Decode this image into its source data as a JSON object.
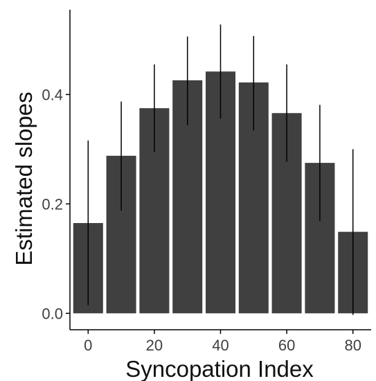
{
  "chart_data": {
    "type": "bar",
    "title": "",
    "xlabel": "Syncopation Index",
    "ylabel": "Estimated slopes",
    "x": [
      0,
      10,
      20,
      30,
      40,
      50,
      60,
      70,
      80
    ],
    "values": [
      0.165,
      0.288,
      0.375,
      0.426,
      0.442,
      0.422,
      0.366,
      0.275,
      0.149
    ],
    "error_low": [
      0.015,
      0.188,
      0.295,
      0.344,
      0.356,
      0.334,
      0.277,
      0.169,
      -0.003
    ],
    "error_high": [
      0.316,
      0.387,
      0.455,
      0.506,
      0.528,
      0.507,
      0.455,
      0.381,
      0.3
    ],
    "xlim": [
      -5.5,
      85.5
    ],
    "ylim": [
      -0.03,
      0.555
    ],
    "x_ticks": [
      0,
      20,
      40,
      60,
      80
    ],
    "x_tick_labels": [
      "0",
      "20",
      "40",
      "60",
      "80"
    ],
    "y_ticks": [
      0.0,
      0.2,
      0.4
    ],
    "y_tick_labels": [
      "0.0",
      "0.2",
      "0.4"
    ],
    "grid": false,
    "legend": "none",
    "colors": {
      "bar": "#404040",
      "errorbar": "#000000",
      "axis": "#000000",
      "tick_text": "#3f3f3f"
    }
  }
}
